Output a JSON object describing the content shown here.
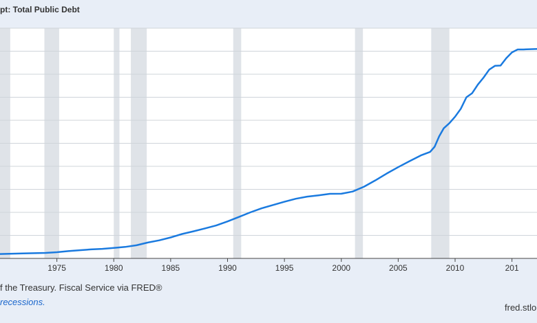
{
  "header": {
    "title": "pt: Total Public Debt"
  },
  "footer": {
    "source": "f the Treasury. Fiscal Service via FRED®",
    "recessions": "recessions.",
    "site": "fred.stlo"
  },
  "chart_data": {
    "type": "line",
    "title": "pt: Total Public Debt",
    "xlabel": "",
    "ylabel": "",
    "x_ticks": [
      "1975",
      "1980",
      "1985",
      "1990",
      "1995",
      "2000",
      "2005",
      "2010",
      "201"
    ],
    "x_range": [
      1970.0,
      2017.2
    ],
    "y_range": [
      0,
      20
    ],
    "y_gridlines": [
      2,
      4,
      6,
      8,
      10,
      12,
      14,
      16,
      18,
      20
    ],
    "grid": true,
    "recession_periods": [
      [
        1969.9,
        1970.9
      ],
      [
        1973.9,
        1975.2
      ],
      [
        1980.0,
        1980.5
      ],
      [
        1981.5,
        1982.9
      ],
      [
        1990.5,
        1991.2
      ],
      [
        2001.2,
        2001.9
      ],
      [
        2007.9,
        2009.5
      ]
    ],
    "colors": {
      "line": "#1a7adf",
      "recession": "#dfe3e8",
      "grid": "#cfd4da",
      "plot_bg": "#ffffff"
    },
    "series": [
      {
        "values": [
          [
            1970.0,
            0.38
          ],
          [
            1972.0,
            0.43
          ],
          [
            1974.0,
            0.48
          ],
          [
            1975.0,
            0.54
          ],
          [
            1976.0,
            0.63
          ],
          [
            1977.0,
            0.71
          ],
          [
            1978.0,
            0.78
          ],
          [
            1979.0,
            0.83
          ],
          [
            1980.0,
            0.91
          ],
          [
            1981.0,
            1.0
          ],
          [
            1982.0,
            1.14
          ],
          [
            1983.0,
            1.38
          ],
          [
            1984.0,
            1.57
          ],
          [
            1985.0,
            1.82
          ],
          [
            1986.0,
            2.12
          ],
          [
            1987.0,
            2.35
          ],
          [
            1988.0,
            2.6
          ],
          [
            1989.0,
            2.86
          ],
          [
            1990.0,
            3.21
          ],
          [
            1991.0,
            3.6
          ],
          [
            1992.0,
            4.0
          ],
          [
            1993.0,
            4.35
          ],
          [
            1994.0,
            4.64
          ],
          [
            1995.0,
            4.92
          ],
          [
            1996.0,
            5.18
          ],
          [
            1997.0,
            5.37
          ],
          [
            1998.0,
            5.48
          ],
          [
            1999.0,
            5.61
          ],
          [
            2000.0,
            5.62
          ],
          [
            2001.0,
            5.81
          ],
          [
            2002.0,
            6.23
          ],
          [
            2003.0,
            6.78
          ],
          [
            2004.0,
            7.38
          ],
          [
            2005.0,
            7.93
          ],
          [
            2006.0,
            8.45
          ],
          [
            2007.0,
            8.95
          ],
          [
            2007.8,
            9.25
          ],
          [
            2008.2,
            9.7
          ],
          [
            2008.6,
            10.6
          ],
          [
            2009.0,
            11.3
          ],
          [
            2009.5,
            11.75
          ],
          [
            2010.0,
            12.31
          ],
          [
            2010.5,
            13.0
          ],
          [
            2011.0,
            14.0
          ],
          [
            2011.5,
            14.35
          ],
          [
            2012.0,
            15.1
          ],
          [
            2012.5,
            15.7
          ],
          [
            2013.0,
            16.4
          ],
          [
            2013.5,
            16.73
          ],
          [
            2014.0,
            16.75
          ],
          [
            2014.5,
            17.4
          ],
          [
            2015.0,
            17.9
          ],
          [
            2015.5,
            18.15
          ],
          [
            2016.0,
            18.15
          ],
          [
            2017.2,
            18.2
          ]
        ]
      }
    ]
  }
}
